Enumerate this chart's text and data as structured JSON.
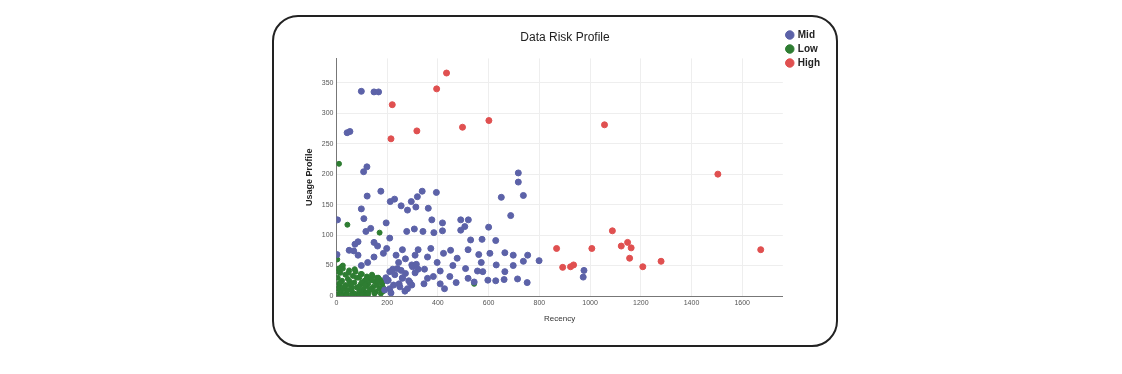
{
  "chart_data": {
    "type": "scatter",
    "title": "Data Risk Profile",
    "xlabel": "Recency",
    "ylabel": "Usage Profile",
    "xlim": [
      0,
      1760
    ],
    "ylim": [
      0,
      390
    ],
    "xticks": [
      0,
      200,
      400,
      600,
      800,
      1000,
      1200,
      1400,
      1600
    ],
    "yticks": [
      0,
      50,
      100,
      150,
      200,
      250,
      300,
      350
    ],
    "grid": true,
    "legend": "top right",
    "marker": "circle",
    "series": [
      {
        "name": "Mid",
        "color": "#5c62a8",
        "x": [
          98,
          148,
          166,
          42,
          53,
          107,
          120,
          121,
          175,
          212,
          229,
          338,
          394,
          717,
          717,
          737,
          650,
          687,
          4,
          98,
          255,
          280,
          295,
          313,
          319,
          362,
          376,
          418,
          490,
          520,
          600,
          196,
          210,
          108,
          116,
          135,
          277,
          307,
          341,
          384,
          418,
          490,
          506,
          529,
          574,
          628,
          85,
          73,
          50,
          148,
          2,
          68,
          85,
          162,
          198,
          260,
          322,
          372,
          422,
          450,
          476,
          519,
          561,
          605,
          664,
          697,
          754,
          799,
          737,
          697,
          664,
          630,
          661,
          628,
          577,
          556,
          519,
          472,
          426,
          409,
          382,
          345,
          322,
          297,
          272,
          245,
          222,
          204,
          247,
          297,
          359,
          447,
          543,
          714,
          752,
          597,
          509,
          459,
          397,
          359,
          310,
          272,
          235,
          185,
          148,
          123,
          98,
          210,
          260,
          310,
          347,
          409,
          571,
          976,
          973,
          190,
          200,
          215,
          230,
          250,
          270,
          290,
          210,
          240,
          260,
          280,
          300,
          195,
          225,
          255,
          285,
          315
        ],
        "values": [
          336,
          335,
          335,
          268,
          270,
          204,
          212,
          164,
          172,
          155,
          159,
          172,
          170,
          202,
          187,
          165,
          162,
          132,
          125,
          143,
          148,
          141,
          155,
          146,
          163,
          144,
          125,
          120,
          125,
          125,
          113,
          120,
          95,
          127,
          106,
          111,
          106,
          110,
          106,
          104,
          107,
          108,
          114,
          92,
          93,
          91,
          89,
          85,
          75,
          88,
          68,
          74,
          67,
          82,
          78,
          76,
          76,
          78,
          70,
          75,
          62,
          76,
          68,
          70,
          71,
          67,
          67,
          58,
          57,
          50,
          40,
          51,
          27,
          25,
          40,
          41,
          29,
          22,
          12,
          20,
          32,
          20,
          44,
          51,
          37,
          55,
          44,
          26,
          20,
          18,
          29,
          32,
          23,
          28,
          22,
          26,
          45,
          50,
          55,
          64,
          67,
          61,
          67,
          70,
          64,
          55,
          50,
          12,
          29,
          38,
          44,
          41,
          55,
          42,
          31,
          10,
          25,
          5,
          35,
          15,
          8,
          22,
          40,
          45,
          30,
          12,
          48,
          30,
          18,
          42,
          25,
          52
        ]
      },
      {
        "name": "Low",
        "color": "#2e7d32",
        "x": [
          10,
          43,
          170,
          543,
          2,
          5,
          8,
          12,
          15,
          18,
          22,
          25,
          30,
          35,
          40,
          45,
          50,
          55,
          60,
          65,
          70,
          75,
          80,
          85,
          90,
          95,
          100,
          105,
          110,
          115,
          120,
          125,
          130,
          140,
          145,
          150,
          155,
          160,
          170,
          175,
          180,
          185,
          3,
          6,
          10,
          14,
          20,
          28,
          36,
          44,
          52,
          60,
          70,
          80,
          90,
          100,
          110,
          120,
          130,
          140,
          150,
          160,
          170,
          180,
          7,
          25,
          48,
          72,
          96,
          118,
          142,
          165,
          20,
          40,
          60,
          100,
          125,
          150,
          175,
          15,
          33,
          58,
          88,
          112,
          138,
          162,
          184
        ],
        "values": [
          217,
          117,
          104,
          20,
          2,
          30,
          45,
          15,
          38,
          8,
          25,
          50,
          12,
          35,
          5,
          28,
          42,
          18,
          9,
          33,
          22,
          40,
          14,
          3,
          30,
          19,
          36,
          11,
          25,
          6,
          32,
          20,
          28,
          35,
          15,
          24,
          7,
          30,
          12,
          26,
          20,
          8,
          60,
          12,
          20,
          6,
          48,
          2,
          18,
          10,
          24,
          14,
          4,
          30,
          8,
          22,
          2,
          16,
          9,
          26,
          5,
          18,
          12,
          22,
          40,
          45,
          38,
          44,
          36,
          28,
          33,
          30,
          1,
          1,
          2,
          3,
          3,
          4,
          4,
          22,
          16,
          20,
          15,
          18,
          12,
          24,
          14
        ]
      },
      {
        "name": "High",
        "color": "#e05050",
        "x": [
          434,
          395,
          220,
          317,
          215,
          497,
          601,
          868,
          892,
          1057,
          1504,
          1088,
          923,
          935,
          1007,
          1123,
          1148,
          1162,
          1156,
          1208,
          1280,
          1673
        ],
        "values": [
          366,
          340,
          314,
          271,
          258,
          277,
          288,
          78,
          47,
          281,
          200,
          107,
          48,
          51,
          78,
          82,
          88,
          79,
          62,
          48,
          57,
          76
        ]
      }
    ]
  }
}
